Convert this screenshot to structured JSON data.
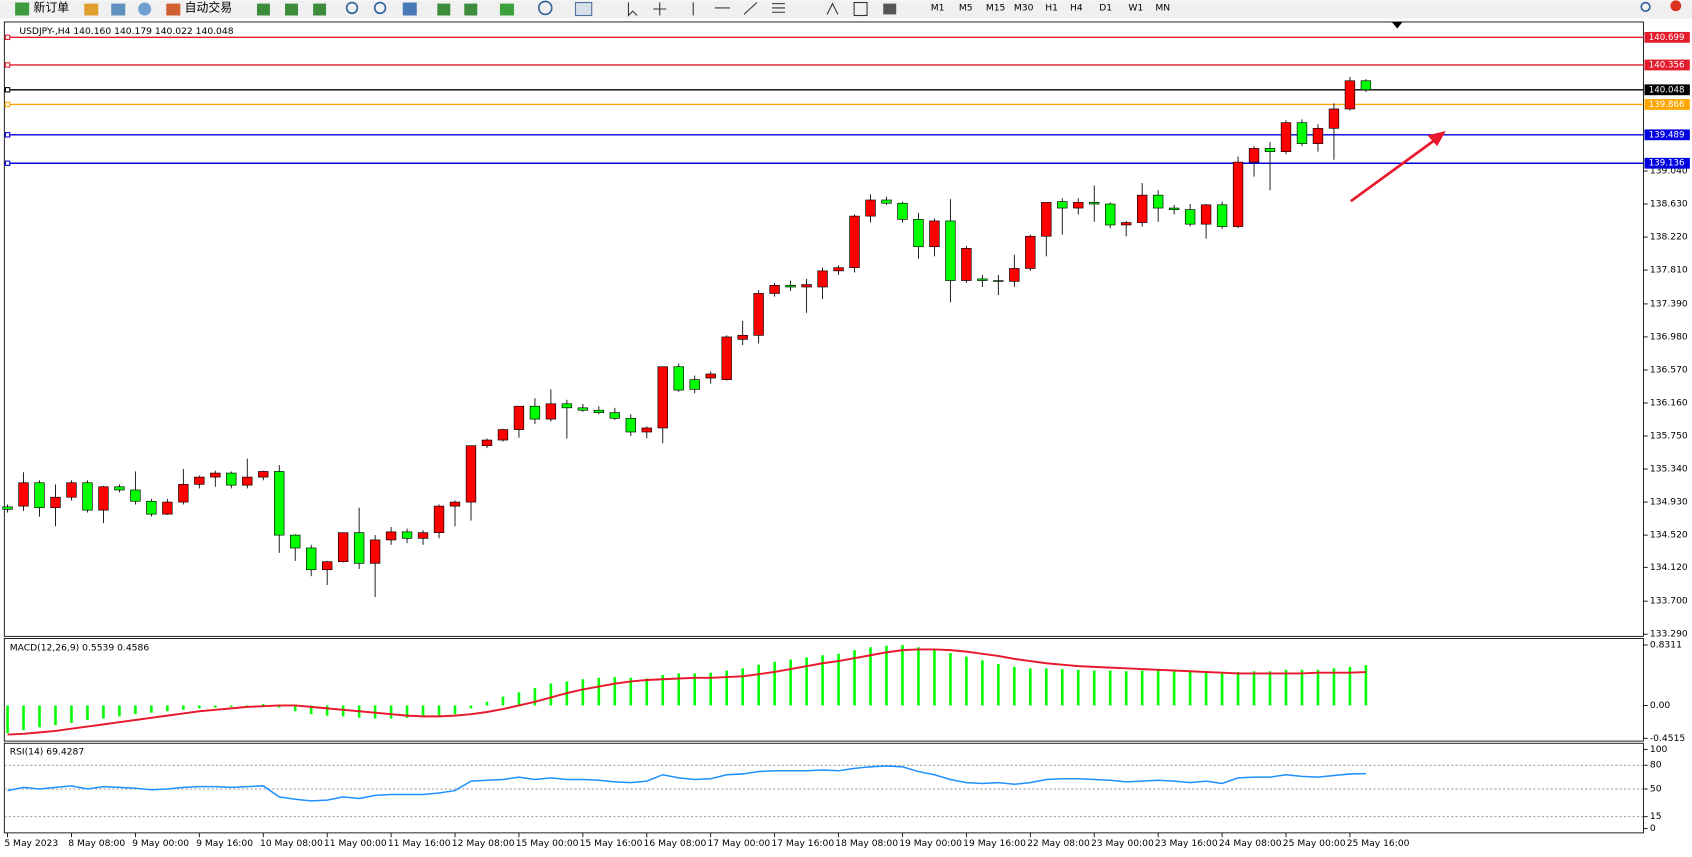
{
  "toolbar": {
    "new_order": "新订单",
    "auto_trading": "自动交易",
    "timeframes": [
      "M1",
      "M5",
      "M15",
      "M30",
      "H1",
      "H4",
      "D1",
      "W1",
      "MN"
    ]
  },
  "chart_data": [
    {
      "type": "candlestick",
      "title": "USDJPY-,H4  140.160 140.179 140.022 140.048",
      "up_color": "#ff0000",
      "down_color": "#00ff00",
      "ylim": [
        133.263,
        140.89
      ],
      "yticks": [
        {
          "value": 139.04,
          "label": "139.040"
        },
        {
          "value": 138.63,
          "label": "138.630"
        },
        {
          "value": 138.22,
          "label": "138.220"
        },
        {
          "value": 137.81,
          "label": "137.810"
        },
        {
          "value": 137.39,
          "label": "137.390"
        },
        {
          "value": 136.98,
          "label": "136.980"
        },
        {
          "value": 136.57,
          "label": "136.570"
        },
        {
          "value": 136.16,
          "label": "136.160"
        },
        {
          "value": 135.75,
          "label": "135.750"
        },
        {
          "value": 135.34,
          "label": "135.340"
        },
        {
          "value": 134.93,
          "label": "134.930"
        },
        {
          "value": 134.52,
          "label": "134.520"
        },
        {
          "value": 134.12,
          "label": "134.120"
        },
        {
          "value": 133.7,
          "label": "133.700"
        },
        {
          "value": 133.29,
          "label": "133.290"
        }
      ],
      "levels": [
        {
          "value": 140.699,
          "color": "#e41b2d"
        },
        {
          "value": 140.356,
          "color": "#e41b2d"
        },
        {
          "value": 140.048,
          "color": "#000000"
        },
        {
          "value": 139.866,
          "color": "#ffa500"
        },
        {
          "value": 139.489,
          "color": "#0000e0"
        },
        {
          "value": 139.136,
          "color": "#0000e0"
        }
      ],
      "open": [
        134.87,
        134.88,
        135.17,
        134.86,
        134.99,
        135.17,
        134.83,
        135.12,
        135.08,
        134.94,
        134.78,
        134.93,
        135.15,
        135.24,
        135.29,
        135.14,
        135.24,
        135.31,
        134.52,
        134.36,
        134.09,
        134.19,
        134.55,
        134.17,
        134.46,
        134.56,
        134.48,
        134.55,
        134.88,
        134.93,
        135.63,
        135.7,
        135.83,
        136.12,
        135.96,
        136.15,
        136.1,
        136.07,
        136.04,
        135.97,
        135.8,
        135.85,
        136.61,
        136.45,
        136.47,
        136.45,
        136.95,
        137.0,
        137.52,
        137.62,
        137.6,
        137.6,
        137.8,
        137.84,
        138.48,
        138.68,
        138.64,
        138.44,
        138.1,
        138.42,
        137.68,
        137.7,
        137.68,
        137.67,
        137.83,
        138.23,
        138.66,
        138.58,
        138.65,
        138.63,
        138.37,
        138.4,
        138.74,
        138.58,
        138.56,
        138.38,
        138.62,
        138.35,
        139.15,
        139.32,
        139.28,
        139.64,
        139.38,
        139.57,
        139.81,
        140.16
      ],
      "high": [
        134.9,
        135.3,
        135.2,
        135.15,
        135.2,
        135.2,
        135.13,
        135.15,
        135.31,
        134.97,
        134.97,
        135.34,
        135.26,
        135.32,
        135.31,
        135.47,
        135.32,
        135.39,
        134.53,
        134.4,
        134.2,
        134.55,
        134.86,
        134.52,
        134.62,
        134.6,
        134.58,
        134.9,
        134.95,
        135.63,
        135.72,
        135.84,
        136.12,
        136.22,
        136.33,
        136.2,
        136.15,
        136.12,
        136.1,
        136.02,
        135.87,
        136.61,
        136.65,
        136.5,
        136.55,
        137.0,
        137.18,
        137.56,
        137.65,
        137.68,
        137.7,
        137.84,
        137.87,
        138.5,
        138.75,
        138.72,
        138.66,
        138.52,
        138.45,
        138.69,
        138.11,
        137.75,
        137.75,
        138.0,
        138.25,
        138.65,
        138.7,
        138.7,
        138.86,
        138.65,
        138.42,
        138.89,
        138.8,
        138.62,
        138.63,
        138.63,
        138.66,
        139.22,
        139.35,
        139.4,
        139.67,
        139.68,
        139.62,
        139.88,
        140.21,
        140.179
      ],
      "low": [
        134.8,
        134.82,
        134.75,
        134.63,
        134.95,
        134.8,
        134.67,
        135.05,
        134.9,
        134.75,
        134.77,
        134.9,
        135.1,
        135.12,
        135.1,
        135.1,
        135.2,
        134.3,
        134.2,
        134.01,
        133.9,
        134.18,
        134.1,
        133.75,
        134.4,
        134.42,
        134.4,
        134.48,
        134.63,
        134.7,
        135.6,
        135.68,
        135.73,
        135.9,
        135.93,
        135.72,
        136.05,
        136.02,
        135.95,
        135.75,
        135.72,
        135.66,
        136.3,
        136.28,
        136.4,
        136.44,
        136.88,
        136.9,
        137.48,
        137.55,
        137.28,
        137.45,
        137.75,
        137.78,
        138.4,
        138.62,
        138.4,
        137.95,
        137.98,
        137.41,
        137.65,
        137.6,
        137.5,
        137.6,
        137.8,
        137.98,
        138.25,
        138.5,
        138.41,
        138.33,
        138.23,
        138.35,
        138.41,
        138.5,
        138.35,
        138.2,
        138.32,
        138.33,
        138.97,
        138.8,
        139.25,
        139.35,
        139.28,
        139.18,
        139.79,
        140.022
      ],
      "close": [
        134.84,
        135.17,
        134.86,
        134.99,
        135.17,
        134.83,
        135.12,
        135.08,
        134.94,
        134.78,
        134.93,
        135.15,
        135.24,
        135.29,
        135.14,
        135.24,
        135.31,
        134.52,
        134.36,
        134.09,
        134.19,
        134.55,
        134.17,
        134.46,
        134.56,
        134.48,
        134.55,
        134.88,
        134.93,
        135.63,
        135.7,
        135.83,
        136.12,
        135.96,
        136.15,
        136.1,
        136.07,
        136.04,
        135.97,
        135.8,
        135.85,
        136.61,
        136.32,
        136.33,
        136.52,
        136.98,
        137.0,
        137.52,
        137.62,
        137.6,
        137.63,
        137.8,
        137.84,
        138.48,
        138.68,
        138.64,
        138.44,
        138.1,
        138.42,
        137.68,
        138.08,
        137.68,
        137.67,
        137.83,
        138.23,
        138.65,
        138.58,
        138.65,
        138.63,
        138.37,
        138.4,
        138.74,
        138.58,
        138.56,
        138.38,
        138.62,
        138.35,
        139.15,
        139.32,
        139.28,
        139.64,
        139.38,
        139.57,
        139.81,
        140.16,
        140.048
      ]
    },
    {
      "type": "macd",
      "title": "MACD(12,26,9) 0.5539 0.4586",
      "ylim": [
        -0.49,
        0.905
      ],
      "yticks": [
        0.8311,
        {
          "value": 0,
          "label": "0.00"
        },
        -0.4515
      ],
      "series": [
        {
          "name": "MACD",
          "color": "#00ff00",
          "values": [
            -0.38,
            -0.34,
            -0.3,
            -0.27,
            -0.24,
            -0.2,
            -0.18,
            -0.15,
            -0.12,
            -0.1,
            -0.08,
            -0.06,
            -0.04,
            -0.03,
            -0.02,
            0.0,
            0.02,
            -0.03,
            -0.08,
            -0.12,
            -0.14,
            -0.15,
            -0.17,
            -0.18,
            -0.18,
            -0.17,
            -0.16,
            -0.14,
            -0.12,
            -0.04,
            0.05,
            0.12,
            0.18,
            0.24,
            0.3,
            0.33,
            0.36,
            0.38,
            0.39,
            0.38,
            0.37,
            0.42,
            0.44,
            0.44,
            0.45,
            0.48,
            0.51,
            0.56,
            0.6,
            0.63,
            0.66,
            0.69,
            0.71,
            0.76,
            0.8,
            0.82,
            0.83,
            0.8,
            0.78,
            0.72,
            0.67,
            0.62,
            0.57,
            0.53,
            0.51,
            0.51,
            0.5,
            0.49,
            0.48,
            0.48,
            0.47,
            0.48,
            0.48,
            0.47,
            0.46,
            0.46,
            0.45,
            0.46,
            0.47,
            0.47,
            0.49,
            0.49,
            0.49,
            0.51,
            0.53,
            0.5539
          ]
        },
        {
          "name": "Signal",
          "color": "#e8192c",
          "values": [
            -0.4,
            -0.39,
            -0.37,
            -0.35,
            -0.32,
            -0.29,
            -0.26,
            -0.23,
            -0.2,
            -0.17,
            -0.14,
            -0.11,
            -0.08,
            -0.06,
            -0.04,
            -0.02,
            -0.01,
            0.0,
            0.0,
            -0.02,
            -0.04,
            -0.06,
            -0.08,
            -0.1,
            -0.12,
            -0.14,
            -0.15,
            -0.15,
            -0.14,
            -0.12,
            -0.09,
            -0.05,
            0.0,
            0.05,
            0.11,
            0.17,
            0.22,
            0.26,
            0.3,
            0.33,
            0.35,
            0.36,
            0.37,
            0.38,
            0.38,
            0.39,
            0.4,
            0.43,
            0.46,
            0.5,
            0.54,
            0.58,
            0.61,
            0.65,
            0.69,
            0.73,
            0.76,
            0.77,
            0.77,
            0.76,
            0.74,
            0.71,
            0.68,
            0.64,
            0.61,
            0.58,
            0.56,
            0.54,
            0.53,
            0.52,
            0.51,
            0.5,
            0.49,
            0.48,
            0.47,
            0.46,
            0.45,
            0.44,
            0.44,
            0.44,
            0.44,
            0.44,
            0.45,
            0.45,
            0.45,
            0.4586
          ]
        }
      ]
    },
    {
      "type": "line",
      "title": "RSI(14) 69.4287",
      "ylim": [
        -4,
        105
      ],
      "yticks": [
        100,
        80,
        50,
        15,
        0
      ],
      "color": "#1e90ff",
      "values": [
        48,
        52,
        50,
        52,
        54,
        50,
        53,
        52,
        51,
        49,
        50,
        52,
        53,
        53,
        52,
        53,
        54,
        40,
        37,
        35,
        36,
        40,
        38,
        42,
        43,
        43,
        43,
        45,
        48,
        60,
        61,
        62,
        65,
        62,
        64,
        62,
        62,
        61,
        59,
        58,
        60,
        68,
        64,
        62,
        63,
        68,
        69,
        72,
        73,
        73,
        73,
        74,
        73,
        76,
        78,
        79,
        78,
        72,
        68,
        62,
        58,
        57,
        58,
        56,
        58,
        62,
        63,
        63,
        62,
        61,
        59,
        60,
        61,
        60,
        58,
        60,
        57,
        64,
        65,
        65,
        68,
        66,
        65,
        67,
        69,
        69.4287
      ],
      "categories": [
        "5 May 2023",
        null,
        null,
        null,
        "8 May 08:00",
        null,
        null,
        null,
        "9 May 00:00",
        null,
        null,
        null,
        "9 May 16:00",
        null,
        null,
        null,
        "10 May 08:00",
        null,
        null,
        null,
        "11 May 00:00",
        null,
        null,
        null,
        "11 May 16:00",
        null,
        null,
        null,
        "12 May 08:00",
        null,
        null,
        null,
        "15 May 00:00",
        null,
        null,
        null,
        "15 May 16:00",
        null,
        null,
        null,
        "16 May 08:00",
        null,
        null,
        null,
        "17 May 00:00",
        null,
        null,
        null,
        "17 May 16:00",
        null,
        null,
        null,
        "18 May 08:00",
        null,
        null,
        null,
        "19 May 00:00",
        null,
        null,
        null,
        "19 May 16:00",
        null,
        null,
        null,
        "22 May 08:00",
        null,
        null,
        null,
        "23 May 00:00",
        null,
        null,
        null,
        "23 May 16:00",
        null,
        null,
        null,
        "24 May 08:00",
        null,
        null,
        null,
        "25 May 00:00",
        null,
        null,
        null,
        "25 May 16:00",
        null
      ]
    }
  ]
}
